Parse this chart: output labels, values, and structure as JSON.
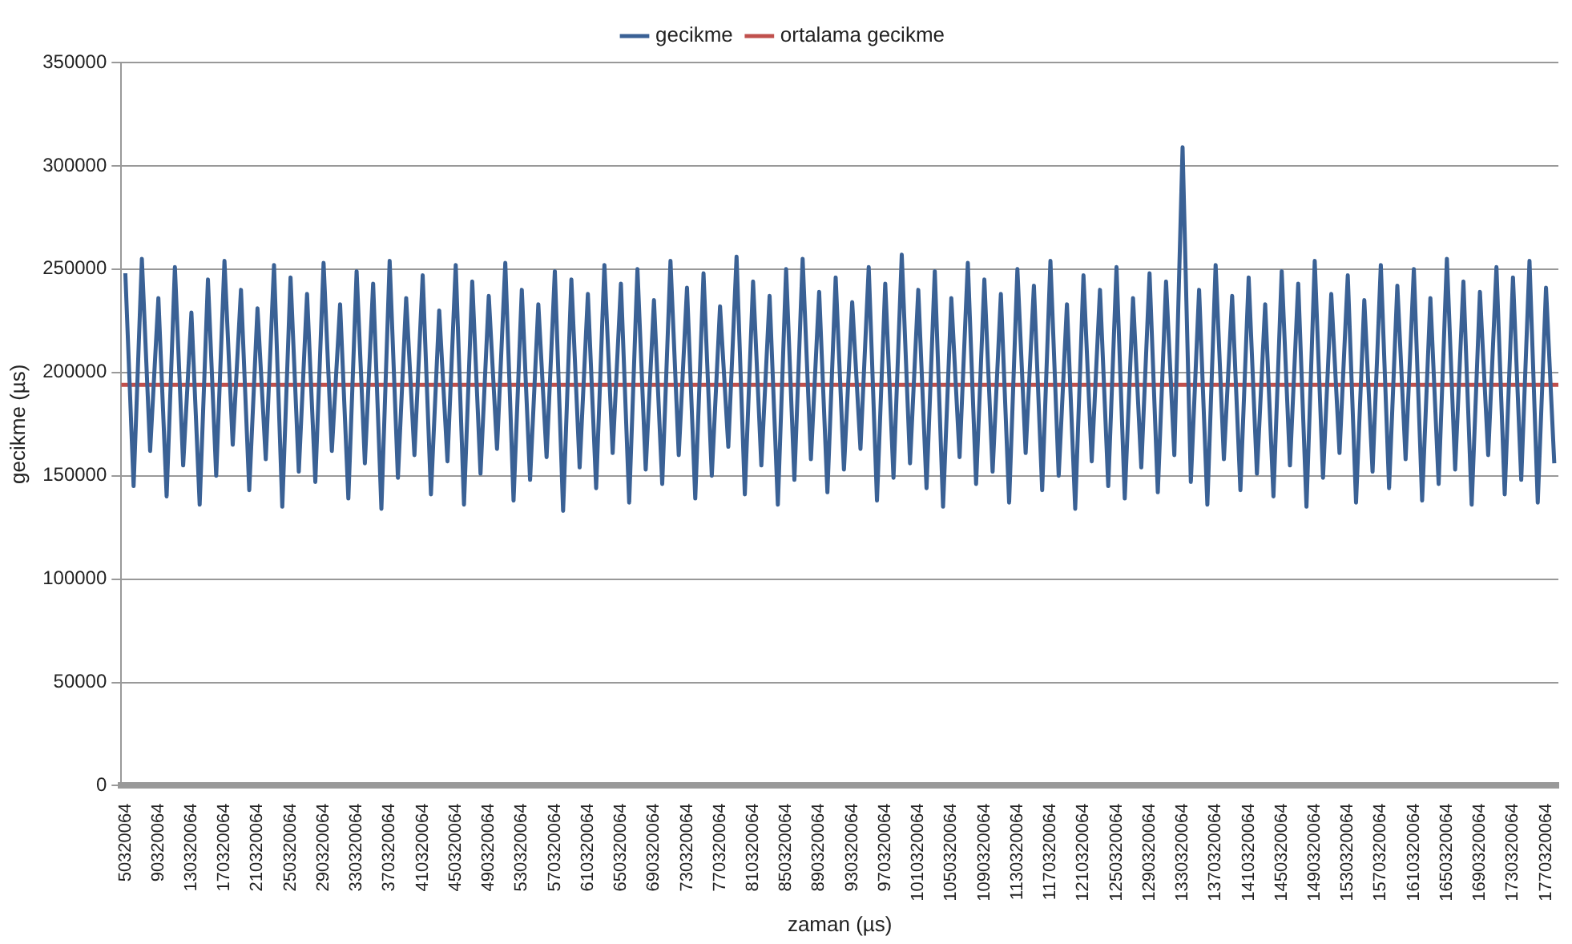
{
  "chart_data": {
    "type": "line",
    "xlabel": "zaman (µs)",
    "ylabel": "gecikme (µs)",
    "xlim": [
      45320064,
      1785320064
    ],
    "xticks": [
      50320064,
      90320064,
      130320064,
      170320064,
      210320064,
      250320064,
      290320064,
      330320064,
      370320064,
      410320064,
      450320064,
      490320064,
      530320064,
      570320064,
      610320064,
      650320064,
      690320064,
      730320064,
      770320064,
      810320064,
      850320064,
      890320064,
      930320064,
      970320064,
      1010320064,
      1050320064,
      1090320064,
      1130320064,
      1170320064,
      1210320064,
      1250320064,
      1290320064,
      1330320064,
      1370320064,
      1410320064,
      1450320064,
      1490320064,
      1530320064,
      1570320064,
      1610320064,
      1650320064,
      1690320064,
      1730320064,
      1770320064
    ],
    "ylim": [
      0,
      350000
    ],
    "yticks": [
      0,
      50000,
      100000,
      150000,
      200000,
      250000,
      300000,
      350000
    ],
    "grid": "y",
    "legend": "top",
    "marker": "none",
    "series": [
      {
        "name": "gecikme",
        "color": "#3a6195",
        "x": [
          50320064,
          60320064,
          70320064,
          80320064,
          90320064,
          100320064,
          110320064,
          120320064,
          130320064,
          140320064,
          150320064,
          160320064,
          170320064,
          180320064,
          190320064,
          200320064,
          210320064,
          220320064,
          230320064,
          240320064,
          250320064,
          260320064,
          270320064,
          280320064,
          290320064,
          300320064,
          310320064,
          320320064,
          330320064,
          340320064,
          350320064,
          360320064,
          370320064,
          380320064,
          390320064,
          400320064,
          410320064,
          420320064,
          430320064,
          440320064,
          450320064,
          460320064,
          470320064,
          480320064,
          490320064,
          500320064,
          510320064,
          520320064,
          530320064,
          540320064,
          550320064,
          560320064,
          570320064,
          580320064,
          590320064,
          600320064,
          610320064,
          620320064,
          630320064,
          640320064,
          650320064,
          660320064,
          670320064,
          680320064,
          690320064,
          700320064,
          710320064,
          720320064,
          730320064,
          740320064,
          750320064,
          760320064,
          770320064,
          780320064,
          790320064,
          800320064,
          810320064,
          820320064,
          830320064,
          840320064,
          850320064,
          860320064,
          870320064,
          880320064,
          890320064,
          900320064,
          910320064,
          920320064,
          930320064,
          940320064,
          950320064,
          960320064,
          970320064,
          980320064,
          990320064,
          1000320064,
          1010320064,
          1020320064,
          1030320064,
          1040320064,
          1050320064,
          1060320064,
          1070320064,
          1080320064,
          1090320064,
          1100320064,
          1110320064,
          1120320064,
          1130320064,
          1140320064,
          1150320064,
          1160320064,
          1170320064,
          1180320064,
          1190320064,
          1200320064,
          1210320064,
          1220320064,
          1230320064,
          1240320064,
          1250320064,
          1260320064,
          1270320064,
          1280320064,
          1290320064,
          1300320064,
          1310320064,
          1320320064,
          1330320064,
          1340320064,
          1350320064,
          1360320064,
          1370320064,
          1380320064,
          1390320064,
          1400320064,
          1410320064,
          1420320064,
          1430320064,
          1440320064,
          1450320064,
          1460320064,
          1470320064,
          1480320064,
          1490320064,
          1500320064,
          1510320064,
          1520320064,
          1530320064,
          1540320064,
          1550320064,
          1560320064,
          1570320064,
          1580320064,
          1590320064,
          1600320064,
          1610320064,
          1620320064,
          1630320064,
          1640320064,
          1650320064,
          1660320064,
          1670320064,
          1680320064,
          1690320064,
          1700320064,
          1710320064,
          1720320064,
          1730320064,
          1740320064,
          1750320064,
          1760320064,
          1770320064,
          1780320064
        ],
        "values": [
          248000,
          145000,
          255000,
          162000,
          236000,
          140000,
          251000,
          155000,
          229000,
          136000,
          245000,
          150000,
          254000,
          165000,
          240000,
          143000,
          231000,
          158000,
          252000,
          135000,
          246000,
          152000,
          238000,
          147000,
          253000,
          162000,
          233000,
          139000,
          249000,
          156000,
          243000,
          134000,
          254000,
          149000,
          236000,
          160000,
          247000,
          141000,
          230000,
          157000,
          252000,
          136000,
          244000,
          151000,
          237000,
          163000,
          253000,
          138000,
          240000,
          148000,
          233000,
          159000,
          249000,
          133000,
          245000,
          154000,
          238000,
          144000,
          252000,
          161000,
          243000,
          137000,
          250000,
          153000,
          235000,
          146000,
          254000,
          160000,
          241000,
          139000,
          248000,
          150000,
          232000,
          164000,
          256000,
          141000,
          244000,
          155000,
          237000,
          136000,
          250000,
          148000,
          255000,
          158000,
          239000,
          142000,
          246000,
          153000,
          234000,
          163000,
          251000,
          138000,
          243000,
          149000,
          257000,
          156000,
          240000,
          144000,
          249000,
          135000,
          236000,
          159000,
          253000,
          146000,
          245000,
          152000,
          238000,
          137000,
          250000,
          161000,
          242000,
          143000,
          254000,
          150000,
          233000,
          134000,
          247000,
          157000,
          240000,
          145000,
          251000,
          139000,
          236000,
          154000,
          248000,
          142000,
          244000,
          160000,
          309000,
          147000,
          240000,
          136000,
          252000,
          158000,
          237000,
          143000,
          246000,
          151000,
          233000,
          140000,
          249000,
          155000,
          243000,
          135000,
          254000,
          149000,
          238000,
          161000,
          247000,
          137000,
          235000,
          152000,
          252000,
          144000,
          242000,
          158000,
          250000,
          138000,
          236000,
          146000,
          255000,
          153000,
          244000,
          136000,
          239000,
          160000,
          251000,
          141000,
          246000,
          148000,
          254000,
          137000,
          241000,
          156000
        ]
      },
      {
        "name": "ortalama gecikme",
        "color": "#c0504d",
        "x": [
          45320064,
          1785320064
        ],
        "values": [
          194000,
          194000
        ]
      }
    ]
  }
}
